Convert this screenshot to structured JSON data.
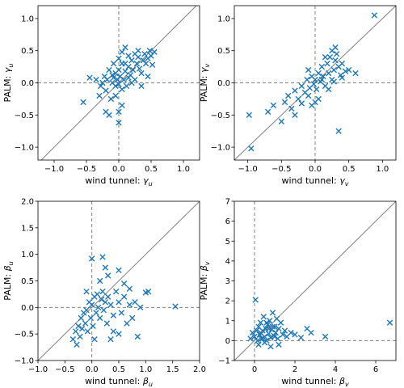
{
  "colors": {
    "marker": "#1f77b4",
    "identity_line": "#808080",
    "zero_line": "#808080"
  },
  "chart_data": [
    {
      "type": "scatter",
      "marker": "x",
      "xlabel_text": "wind tunnel: ",
      "xlabel_symbol": "γ",
      "xlabel_sub": "u",
      "ylabel_text": "PALM: ",
      "ylabel_symbol": "γ",
      "ylabel_sub": "u",
      "xlim": [
        -1.25,
        1.25
      ],
      "ylim": [
        -1.2,
        1.2
      ],
      "xticks": [
        -1.0,
        -0.5,
        0.0,
        0.5,
        1.0
      ],
      "yticks": [
        -1.0,
        -0.5,
        0.0,
        0.5,
        1.0
      ],
      "xtick_labels": [
        "−1.0",
        "−0.5",
        "0.0",
        "0.5",
        "1.0"
      ],
      "ytick_labels": [
        "−1.0",
        "−0.5",
        "0.0",
        "0.5",
        "1.0"
      ],
      "identity_line": true,
      "zero_lines": true,
      "points": [
        [
          -0.55,
          -0.3
        ],
        [
          -0.45,
          0.08
        ],
        [
          -0.3,
          -0.2
        ],
        [
          -0.28,
          -0.05
        ],
        [
          -0.25,
          0.0
        ],
        [
          -0.22,
          0.1
        ],
        [
          -0.2,
          -0.12
        ],
        [
          -0.18,
          0.05
        ],
        [
          -0.15,
          0.2
        ],
        [
          -0.12,
          -0.25
        ],
        [
          -0.1,
          0.0
        ],
        [
          -0.1,
          0.12
        ],
        [
          -0.08,
          0.08
        ],
        [
          -0.05,
          -0.05
        ],
        [
          -0.05,
          0.15
        ],
        [
          -0.02,
          0.05
        ],
        [
          0.0,
          -0.02
        ],
        [
          0.0,
          0.2
        ],
        [
          0.02,
          0.1
        ],
        [
          0.05,
          -0.1
        ],
        [
          0.05,
          0.3
        ],
        [
          0.08,
          0.05
        ],
        [
          0.1,
          0.18
        ],
        [
          0.12,
          -0.05
        ],
        [
          0.15,
          0.25
        ],
        [
          0.18,
          0.12
        ],
        [
          0.2,
          0.35
        ],
        [
          0.22,
          0.2
        ],
        [
          0.25,
          0.05
        ],
        [
          0.28,
          0.3
        ],
        [
          0.3,
          0.4
        ],
        [
          0.32,
          0.22
        ],
        [
          0.35,
          0.15
        ],
        [
          0.38,
          0.35
        ],
        [
          0.4,
          0.45
        ],
        [
          0.42,
          0.3
        ],
        [
          0.45,
          0.38
        ],
        [
          0.48,
          0.5
        ],
        [
          0.5,
          0.42
        ],
        [
          0.52,
          0.28
        ],
        [
          0.55,
          0.48
        ],
        [
          0.3,
          0.5
        ],
        [
          0.25,
          0.45
        ],
        [
          0.15,
          0.42
        ],
        [
          0.1,
          0.55
        ],
        [
          0.05,
          0.48
        ],
        [
          0.0,
          0.38
        ],
        [
          0.2,
          0.0
        ],
        [
          0.35,
          -0.05
        ],
        [
          0.45,
          0.1
        ],
        [
          -0.2,
          -0.45
        ],
        [
          -0.15,
          -0.5
        ],
        [
          -0.05,
          -0.2
        ],
        [
          0.05,
          -0.35
        ],
        [
          0.0,
          -0.45
        ],
        [
          0.0,
          -0.62
        ],
        [
          -0.08,
          0.3
        ],
        [
          0.1,
          0.3
        ],
        [
          0.15,
          0.08
        ],
        [
          -0.35,
          0.05
        ]
      ]
    },
    {
      "type": "scatter",
      "marker": "x",
      "xlabel_text": "wind tunnel: ",
      "xlabel_symbol": "γ",
      "xlabel_sub": "v",
      "ylabel_text": "PALM: ",
      "ylabel_symbol": "γ",
      "ylabel_sub": "v",
      "xlim": [
        -1.2,
        1.2
      ],
      "ylim": [
        -1.2,
        1.2
      ],
      "xticks": [
        -1.0,
        -0.5,
        0.0,
        0.5,
        1.0
      ],
      "yticks": [
        -1.0,
        -0.5,
        0.0,
        0.5,
        1.0
      ],
      "xtick_labels": [
        "−1.0",
        "−0.5",
        "0.0",
        "0.5",
        "1.0"
      ],
      "ytick_labels": [
        "−1.0",
        "−0.5",
        "0.0",
        "0.5",
        "1.0"
      ],
      "identity_line": true,
      "zero_lines": true,
      "points": [
        [
          -0.95,
          -1.02
        ],
        [
          -0.98,
          -0.5
        ],
        [
          -0.7,
          -0.45
        ],
        [
          -0.62,
          -0.35
        ],
        [
          -0.5,
          -0.6
        ],
        [
          -0.45,
          -0.3
        ],
        [
          -0.4,
          -0.2
        ],
        [
          -0.35,
          -0.4
        ],
        [
          -0.3,
          -0.12
        ],
        [
          -0.25,
          -0.25
        ],
        [
          -0.2,
          -0.05
        ],
        [
          -0.2,
          -0.32
        ],
        [
          -0.15,
          -0.15
        ],
        [
          -0.12,
          0.05
        ],
        [
          -0.1,
          -0.2
        ],
        [
          -0.08,
          -0.08
        ],
        [
          -0.05,
          0.1
        ],
        [
          -0.02,
          -0.02
        ],
        [
          0.0,
          0.05
        ],
        [
          0.02,
          -0.1
        ],
        [
          0.05,
          0.15
        ],
        [
          0.08,
          0.02
        ],
        [
          0.1,
          0.25
        ],
        [
          0.12,
          0.1
        ],
        [
          0.15,
          -0.05
        ],
        [
          0.18,
          0.3
        ],
        [
          0.2,
          0.15
        ],
        [
          0.22,
          0.4
        ],
        [
          0.25,
          0.05
        ],
        [
          0.28,
          0.2
        ],
        [
          0.3,
          0.35
        ],
        [
          0.32,
          0.45
        ],
        [
          0.35,
          0.25
        ],
        [
          0.38,
          0.12
        ],
        [
          0.4,
          0.3
        ],
        [
          0.45,
          0.18
        ],
        [
          0.5,
          0.2
        ],
        [
          0.35,
          -0.75
        ],
        [
          0.88,
          1.05
        ],
        [
          0.6,
          0.15
        ],
        [
          0.3,
          0.55
        ],
        [
          0.25,
          0.5
        ],
        [
          0.0,
          -0.3
        ],
        [
          -0.1,
          0.2
        ],
        [
          0.15,
          0.4
        ],
        [
          0.05,
          -0.25
        ],
        [
          -0.3,
          -0.5
        ],
        [
          0.2,
          -0.1
        ],
        [
          0.1,
          0.05
        ],
        [
          -0.05,
          -0.35
        ],
        [
          0.28,
          0.02
        ],
        [
          0.4,
          0.08
        ]
      ]
    },
    {
      "type": "scatter",
      "marker": "x",
      "xlabel_text": "wind tunnel: ",
      "xlabel_symbol": "β",
      "xlabel_sub": "u",
      "ylabel_text": "PALM: ",
      "ylabel_symbol": "β",
      "ylabel_sub": "u",
      "xlim": [
        -1.0,
        2.0
      ],
      "ylim": [
        -1.0,
        2.0
      ],
      "xticks": [
        -1.0,
        -0.5,
        0.0,
        0.5,
        1.0,
        1.5,
        2.0
      ],
      "yticks": [
        -1.0,
        -0.5,
        0.0,
        0.5,
        1.0,
        1.5,
        2.0
      ],
      "xtick_labels": [
        "−1.0",
        "−0.5",
        "0.0",
        "0.5",
        "1.0",
        "1.5",
        "2.0"
      ],
      "ytick_labels": [
        "−1.0",
        "−0.5",
        "0.0",
        "0.5",
        "1.0",
        "1.5",
        "2.0"
      ],
      "identity_line": true,
      "zero_lines": true,
      "points": [
        [
          -0.35,
          -0.6
        ],
        [
          -0.3,
          -0.45
        ],
        [
          -0.28,
          -0.7
        ],
        [
          -0.25,
          -0.35
        ],
        [
          -0.22,
          -0.55
        ],
        [
          -0.2,
          -0.2
        ],
        [
          -0.18,
          -0.4
        ],
        [
          -0.15,
          -0.1
        ],
        [
          -0.12,
          -0.3
        ],
        [
          -0.1,
          -0.05
        ],
        [
          -0.08,
          -0.45
        ],
        [
          -0.05,
          0.1
        ],
        [
          -0.02,
          -0.2
        ],
        [
          0.0,
          0.05
        ],
        [
          0.02,
          -0.35
        ],
        [
          0.05,
          0.2
        ],
        [
          0.08,
          -0.1
        ],
        [
          0.1,
          0.25
        ],
        [
          0.12,
          0.0
        ],
        [
          0.15,
          -0.2
        ],
        [
          0.18,
          0.15
        ],
        [
          0.2,
          0.3
        ],
        [
          0.22,
          -0.05
        ],
        [
          0.25,
          0.1
        ],
        [
          0.28,
          -0.3
        ],
        [
          0.3,
          0.2
        ],
        [
          0.35,
          0.05
        ],
        [
          0.4,
          -0.15
        ],
        [
          0.45,
          0.3
        ],
        [
          0.5,
          0.1
        ],
        [
          0.55,
          -0.1
        ],
        [
          0.6,
          0.2
        ],
        [
          0.65,
          -0.3
        ],
        [
          0.7,
          0.05
        ],
        [
          0.75,
          -0.2
        ],
        [
          0.8,
          0.1
        ],
        [
          0.85,
          -0.55
        ],
        [
          0.9,
          0.0
        ],
        [
          1.0,
          0.28
        ],
        [
          1.05,
          0.3
        ],
        [
          1.55,
          0.02
        ],
        [
          0.3,
          0.6
        ],
        [
          0.25,
          0.75
        ],
        [
          0.5,
          0.7
        ],
        [
          0.0,
          0.92
        ],
        [
          0.2,
          0.95
        ],
        [
          0.4,
          -0.45
        ],
        [
          0.5,
          -0.5
        ],
        [
          0.15,
          0.5
        ],
        [
          -0.1,
          0.3
        ],
        [
          0.6,
          0.45
        ],
        [
          0.35,
          -0.6
        ],
        [
          0.7,
          0.35
        ],
        [
          0.05,
          -0.6
        ]
      ]
    },
    {
      "type": "scatter",
      "marker": "x",
      "xlabel_text": "wind tunnel: ",
      "xlabel_symbol": "β",
      "xlabel_sub": "v",
      "ylabel_text": "PALM: ",
      "ylabel_symbol": "β",
      "ylabel_sub": "v",
      "xlim": [
        -1.0,
        7.0
      ],
      "ylim": [
        -1.0,
        7.0
      ],
      "xticks": [
        0,
        2,
        4,
        6
      ],
      "yticks": [
        -1,
        0,
        1,
        2,
        3,
        4,
        5,
        6,
        7
      ],
      "xtick_labels": [
        "0",
        "2",
        "4",
        "6"
      ],
      "ytick_labels": [
        "−1",
        "0",
        "1",
        "2",
        "3",
        "4",
        "5",
        "6",
        "7"
      ],
      "identity_line": true,
      "zero_lines": true,
      "points": [
        [
          -0.2,
          0.1
        ],
        [
          -0.1,
          0.4
        ],
        [
          0.0,
          0.2
        ],
        [
          0.05,
          2.05
        ],
        [
          0.1,
          0.5
        ],
        [
          0.15,
          0.0
        ],
        [
          0.2,
          0.7
        ],
        [
          0.25,
          0.3
        ],
        [
          0.3,
          0.9
        ],
        [
          0.35,
          0.1
        ],
        [
          0.4,
          0.5
        ],
        [
          0.45,
          1.2
        ],
        [
          0.5,
          0.2
        ],
        [
          0.55,
          0.6
        ],
        [
          0.6,
          0.0
        ],
        [
          0.65,
          0.8
        ],
        [
          0.7,
          0.35
        ],
        [
          0.75,
          1.0
        ],
        [
          0.8,
          0.15
        ],
        [
          0.85,
          0.55
        ],
        [
          0.9,
          1.4
        ],
        [
          0.95,
          0.25
        ],
        [
          1.0,
          0.7
        ],
        [
          1.05,
          0.4
        ],
        [
          1.1,
          1.1
        ],
        [
          1.15,
          0.1
        ],
        [
          1.2,
          0.6
        ],
        [
          1.3,
          0.9
        ],
        [
          1.4,
          0.3
        ],
        [
          1.5,
          0.5
        ],
        [
          1.6,
          0.2
        ],
        [
          1.8,
          0.4
        ],
        [
          2.0,
          0.3
        ],
        [
          2.3,
          0.15
        ],
        [
          2.6,
          0.6
        ],
        [
          2.8,
          0.4
        ],
        [
          3.5,
          0.2
        ],
        [
          6.7,
          0.9
        ],
        [
          0.2,
          -0.2
        ],
        [
          0.5,
          -0.1
        ],
        [
          0.8,
          -0.3
        ],
        [
          1.2,
          -0.2
        ],
        [
          0.3,
          0.4
        ],
        [
          0.6,
          0.9
        ],
        [
          0.4,
          0.1
        ],
        [
          0.9,
          0.7
        ],
        [
          1.0,
          0.2
        ],
        [
          0.7,
          0.6
        ]
      ]
    }
  ]
}
